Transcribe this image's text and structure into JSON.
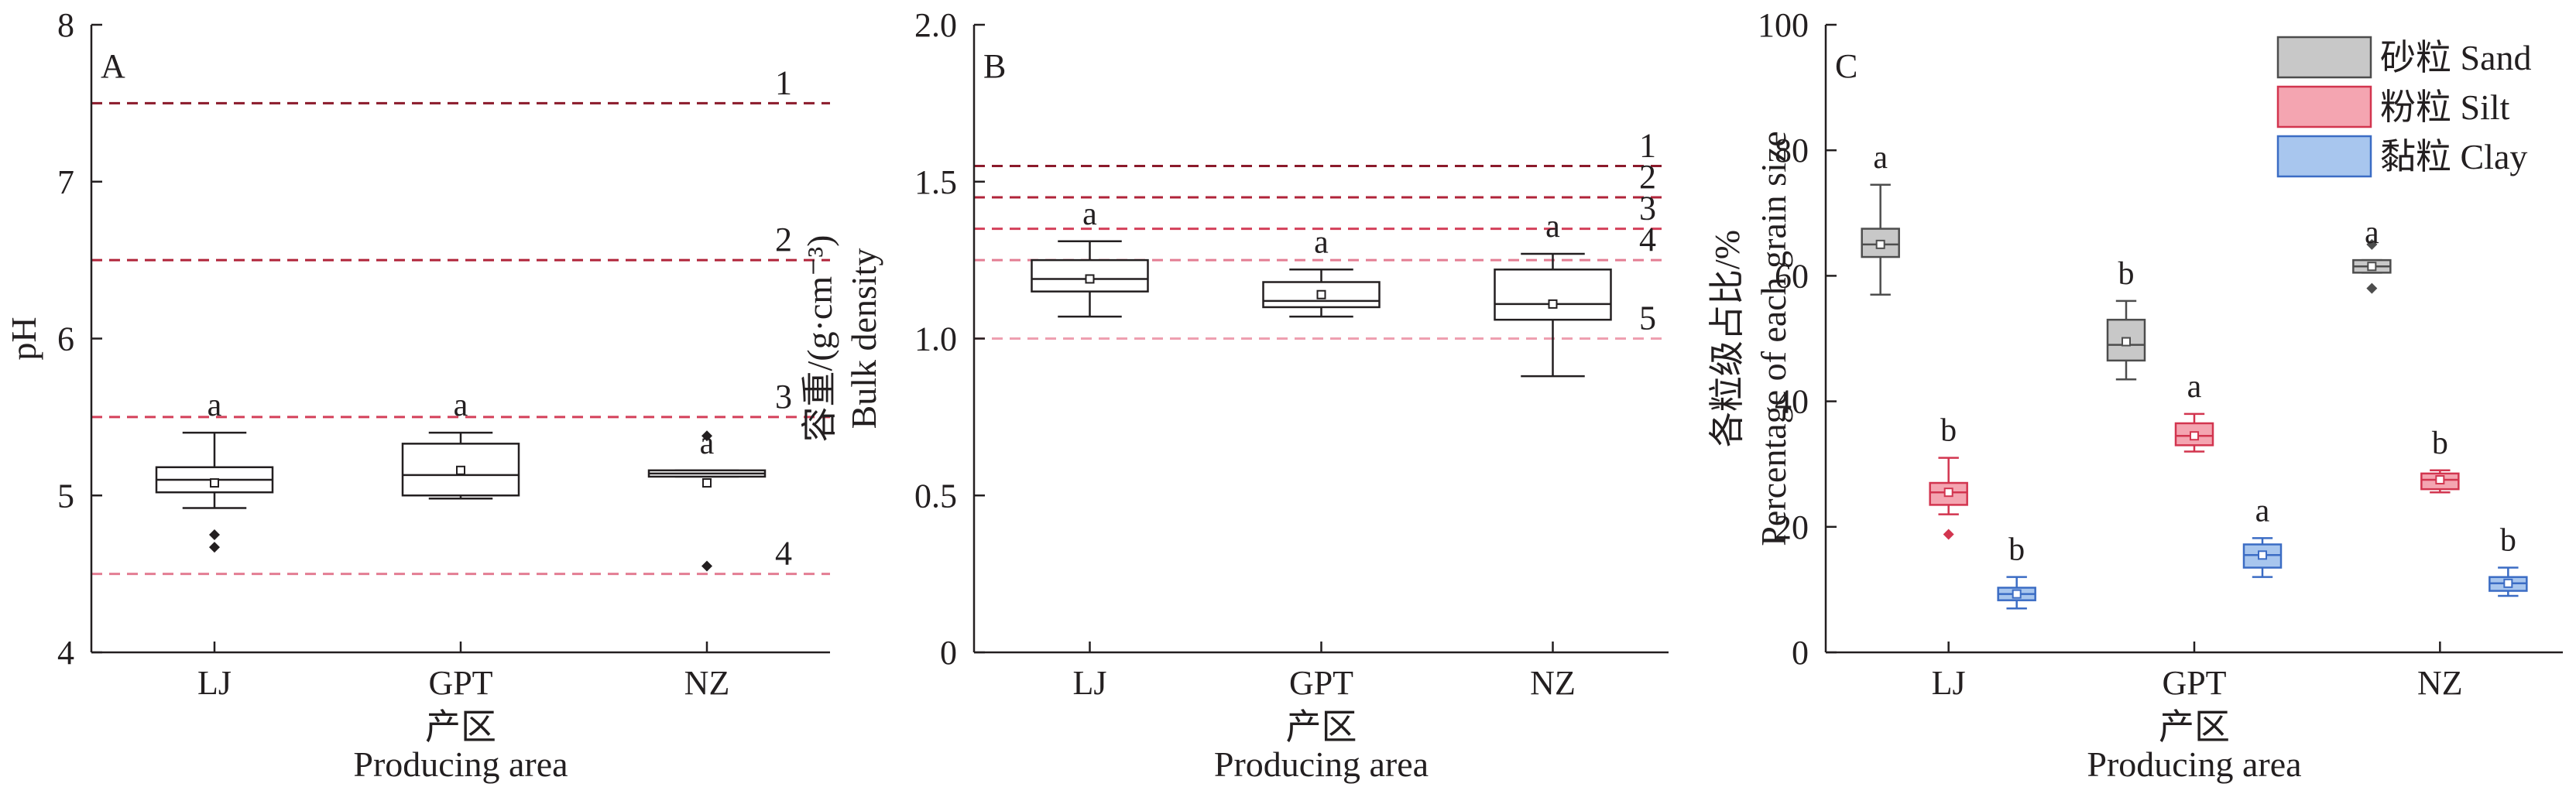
{
  "chart_data": [
    {
      "type": "box",
      "panel": "A",
      "categories": [
        "LJ",
        "GPT",
        "NZ"
      ],
      "xlabel": [
        "产区",
        "Producing area"
      ],
      "ylabel": [
        "pH"
      ],
      "ylim": [
        4,
        8
      ],
      "yticks": [
        4,
        5,
        6,
        7,
        8
      ],
      "reference_lines": [
        {
          "label": "1",
          "y": 7.5,
          "color": "#8b1a2b"
        },
        {
          "label": "2",
          "y": 6.5,
          "color": "#b0243a"
        },
        {
          "label": "3",
          "y": 5.5,
          "color": "#d4405a"
        },
        {
          "label": "4",
          "y": 4.5,
          "color": "#e37d93"
        }
      ],
      "series": [
        {
          "color": "#231f20",
          "fill": "#ffffff",
          "boxes": [
            {
              "category": "LJ",
              "whisker_low": 4.92,
              "q1": 5.02,
              "median": 5.1,
              "q3": 5.18,
              "whisker_high": 5.4,
              "mean": 5.08,
              "outliers": [
                4.75,
                4.67
              ],
              "sig": "a"
            },
            {
              "category": "GPT",
              "whisker_low": 4.98,
              "q1": 5.0,
              "median": 5.13,
              "q3": 5.33,
              "whisker_high": 5.4,
              "mean": 5.16,
              "outliers": [],
              "sig": "a"
            },
            {
              "category": "NZ",
              "whisker_low": 5.12,
              "q1": 5.12,
              "median": 5.14,
              "q3": 5.16,
              "whisker_high": 5.16,
              "mean": 5.08,
              "outliers": [
                5.38,
                4.55
              ],
              "sig": "a"
            }
          ]
        }
      ]
    },
    {
      "type": "box",
      "panel": "B",
      "categories": [
        "LJ",
        "GPT",
        "NZ"
      ],
      "xlabel": [
        "产区",
        "Producing area"
      ],
      "ylabel": [
        "容重/(g·cm⁻³)",
        "Bulk density"
      ],
      "ylim": [
        0,
        2.0
      ],
      "yticks": [
        0,
        0.5,
        1.0,
        1.5,
        2.0
      ],
      "ytick_labels": [
        "0",
        "0.5",
        "1.0",
        "1.5",
        "2.0"
      ],
      "reference_lines": [
        {
          "label": "1",
          "y": 1.55,
          "color": "#8b1a2b"
        },
        {
          "label": "2",
          "y": 1.45,
          "color": "#b0243a"
        },
        {
          "label": "3",
          "y": 1.35,
          "color": "#d4405a"
        },
        {
          "label": "4",
          "y": 1.25,
          "color": "#e37d93"
        },
        {
          "label": "5",
          "y": 1.0,
          "color": "#ee9fb0"
        }
      ],
      "series": [
        {
          "color": "#231f20",
          "fill": "#ffffff",
          "boxes": [
            {
              "category": "LJ",
              "whisker_low": 1.07,
              "q1": 1.15,
              "median": 1.19,
              "q3": 1.25,
              "whisker_high": 1.31,
              "mean": 1.19,
              "outliers": [],
              "sig": "a"
            },
            {
              "category": "GPT",
              "whisker_low": 1.07,
              "q1": 1.1,
              "median": 1.12,
              "q3": 1.18,
              "whisker_high": 1.22,
              "mean": 1.14,
              "outliers": [],
              "sig": "a"
            },
            {
              "category": "NZ",
              "whisker_low": 0.88,
              "q1": 1.06,
              "median": 1.11,
              "q3": 1.22,
              "whisker_high": 1.27,
              "mean": 1.11,
              "outliers": [],
              "sig": "a"
            }
          ]
        }
      ]
    },
    {
      "type": "box",
      "panel": "C",
      "categories": [
        "LJ",
        "GPT",
        "NZ"
      ],
      "xlabel": [
        "产区",
        "Producing area"
      ],
      "ylabel": [
        "各粒级占比/%",
        "Percentage of each grain size"
      ],
      "ylim": [
        0,
        100
      ],
      "yticks": [
        0,
        20,
        40,
        60,
        80,
        100
      ],
      "legend_position": "top-right",
      "series": [
        {
          "name": "砂粒 Sand",
          "color": "#4d4d4d",
          "fill": "#c8c8c8",
          "boxes": [
            {
              "category": "LJ",
              "whisker_low": 57,
              "q1": 63,
              "median": 65,
              "q3": 67.5,
              "whisker_high": 74.5,
              "mean": 65,
              "outliers": [],
              "sig": "a"
            },
            {
              "category": "GPT",
              "whisker_low": 43.5,
              "q1": 46.5,
              "median": 49,
              "q3": 53,
              "whisker_high": 56,
              "mean": 49.5,
              "outliers": [],
              "sig": "b"
            },
            {
              "category": "NZ",
              "whisker_low": 60.5,
              "q1": 60.5,
              "median": 61.5,
              "q3": 62.5,
              "whisker_high": 62.5,
              "mean": 61.5,
              "outliers": [
                65,
                58
              ],
              "sig": "a"
            }
          ]
        },
        {
          "name": "粉粒 Silt",
          "color": "#d2354f",
          "fill": "#f4a5b1",
          "boxes": [
            {
              "category": "LJ",
              "whisker_low": 22,
              "q1": 23.5,
              "median": 25.5,
              "q3": 27,
              "whisker_high": 31,
              "mean": 25.5,
              "outliers": [
                18.8
              ],
              "sig": "b"
            },
            {
              "category": "GPT",
              "whisker_low": 32,
              "q1": 33,
              "median": 34.5,
              "q3": 36.5,
              "whisker_high": 38,
              "mean": 34.5,
              "outliers": [],
              "sig": "a"
            },
            {
              "category": "NZ",
              "whisker_low": 25.5,
              "q1": 26,
              "median": 27.5,
              "q3": 28.5,
              "whisker_high": 29,
              "mean": 27.5,
              "outliers": [],
              "sig": "b"
            }
          ]
        },
        {
          "name": "黏粒 Clay",
          "color": "#3b6cc4",
          "fill": "#a8c6ee",
          "boxes": [
            {
              "category": "LJ",
              "whisker_low": 7,
              "q1": 8.3,
              "median": 9.3,
              "q3": 10.3,
              "whisker_high": 12,
              "mean": 9.3,
              "outliers": [],
              "sig": "b"
            },
            {
              "category": "GPT",
              "whisker_low": 12,
              "q1": 13.5,
              "median": 15.5,
              "q3": 17.2,
              "whisker_high": 18.2,
              "mean": 15.5,
              "outliers": [],
              "sig": "a"
            },
            {
              "category": "NZ",
              "whisker_low": 9,
              "q1": 9.8,
              "median": 11,
              "q3": 12,
              "whisker_high": 13.5,
              "mean": 11,
              "outliers": [],
              "sig": "b"
            }
          ]
        }
      ]
    }
  ]
}
